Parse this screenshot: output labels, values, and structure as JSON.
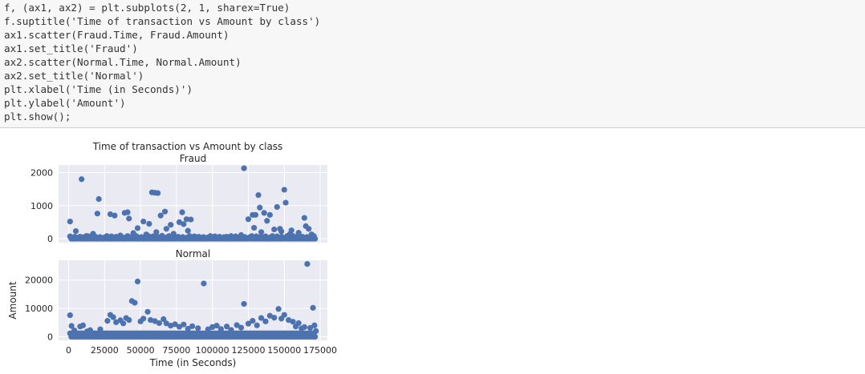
{
  "code_cell": {
    "lines": [
      "f, (ax1, ax2) = plt.subplots(2, 1, sharex=True)",
      "f.suptitle('Time of transaction vs Amount by class')",
      "ax1.scatter(Fraud.Time, Fraud.Amount)",
      "ax1.set_title('Fraud')",
      "ax2.scatter(Normal.Time, Normal.Amount)",
      "ax2.set_title('Normal')",
      "plt.xlabel('Time (in Seconds)')",
      "plt.ylabel('Amount')",
      "plt.show();"
    ]
  },
  "chart_data": {
    "type": "scatter",
    "title": "Time of transaction vs Amount by class",
    "colors": {
      "point": "#4c72b0",
      "axes_bg": "#eaeaf2",
      "grid": "#ffffff",
      "text": "#262626"
    },
    "xlabel": "Time (in Seconds)",
    "xlim": [
      -7000,
      180000
    ],
    "xticks": [
      0,
      25000,
      50000,
      75000,
      100000,
      125000,
      150000,
      175000
    ],
    "xtick_labels": [
      "0",
      "25000",
      "50000",
      "75000",
      "100000",
      "125000",
      "150000",
      "175000"
    ],
    "sharex": true,
    "subplots": [
      {
        "title": "Fraud",
        "ylabel": "",
        "ylim": [
          -120,
          2230
        ],
        "yticks": [
          0,
          1000,
          2000
        ],
        "ytick_labels": [
          "0",
          "1000",
          "2000"
        ],
        "points": [
          [
            1000,
            520
          ],
          [
            3000,
            5
          ],
          [
            5000,
            230
          ],
          [
            8000,
            60
          ],
          [
            9000,
            1800
          ],
          [
            10000,
            40
          ],
          [
            12000,
            10
          ],
          [
            13000,
            80
          ],
          [
            15000,
            30
          ],
          [
            17000,
            150
          ],
          [
            18000,
            5
          ],
          [
            20000,
            760
          ],
          [
            21000,
            1200
          ],
          [
            23000,
            20
          ],
          [
            25000,
            5
          ],
          [
            27000,
            60
          ],
          [
            29000,
            740
          ],
          [
            30000,
            10
          ],
          [
            32000,
            700
          ],
          [
            34000,
            40
          ],
          [
            36000,
            100
          ],
          [
            37000,
            5
          ],
          [
            39000,
            780
          ],
          [
            41000,
            800
          ],
          [
            42000,
            610
          ],
          [
            43000,
            30
          ],
          [
            45000,
            170
          ],
          [
            47000,
            80
          ],
          [
            48000,
            320
          ],
          [
            50000,
            5
          ],
          [
            52000,
            520
          ],
          [
            54000,
            130
          ],
          [
            56000,
            450
          ],
          [
            58000,
            1400
          ],
          [
            60000,
            1390
          ],
          [
            61000,
            200
          ],
          [
            62000,
            1380
          ],
          [
            63000,
            10
          ],
          [
            64000,
            700
          ],
          [
            65000,
            90
          ],
          [
            67000,
            820
          ],
          [
            68000,
            300
          ],
          [
            70000,
            20
          ],
          [
            71000,
            420
          ],
          [
            73000,
            150
          ],
          [
            75000,
            40
          ],
          [
            77000,
            500
          ],
          [
            79000,
            800
          ],
          [
            80000,
            440
          ],
          [
            82000,
            590
          ],
          [
            83000,
            240
          ],
          [
            85000,
            580
          ],
          [
            86000,
            20
          ],
          [
            88000,
            60
          ],
          [
            90000,
            5
          ],
          [
            93000,
            30
          ],
          [
            95000,
            20
          ],
          [
            98000,
            10
          ],
          [
            100000,
            5
          ],
          [
            103000,
            30
          ],
          [
            106000,
            5
          ],
          [
            108000,
            20
          ],
          [
            110000,
            60
          ],
          [
            112000,
            10
          ],
          [
            115000,
            30
          ],
          [
            118000,
            5
          ],
          [
            120000,
            110
          ],
          [
            122000,
            2130
          ],
          [
            125000,
            590
          ],
          [
            126000,
            40
          ],
          [
            128000,
            720
          ],
          [
            129000,
            330
          ],
          [
            130000,
            720
          ],
          [
            132000,
            1320
          ],
          [
            133000,
            940
          ],
          [
            134000,
            200
          ],
          [
            136000,
            780
          ],
          [
            137000,
            70
          ],
          [
            138000,
            540
          ],
          [
            140000,
            720
          ],
          [
            141000,
            30
          ],
          [
            143000,
            280
          ],
          [
            145000,
            960
          ],
          [
            147000,
            300
          ],
          [
            148000,
            220
          ],
          [
            150000,
            1480
          ],
          [
            151000,
            1090
          ],
          [
            152000,
            80
          ],
          [
            154000,
            140
          ],
          [
            155000,
            250
          ],
          [
            157000,
            60
          ],
          [
            159000,
            30
          ],
          [
            160000,
            180
          ],
          [
            162000,
            10
          ],
          [
            164000,
            630
          ],
          [
            165000,
            380
          ],
          [
            166000,
            20
          ],
          [
            167000,
            300
          ],
          [
            168000,
            5
          ],
          [
            169000,
            130
          ],
          [
            170000,
            10
          ]
        ]
      },
      {
        "title": "Normal",
        "ylabel": "Amount",
        "ylim": [
          -1300,
          27000
        ],
        "yticks": [
          0,
          10000,
          20000
        ],
        "ytick_labels": [
          "0",
          "10000",
          "20000"
        ],
        "points": [
          [
            1000,
            7600
          ],
          [
            2000,
            3800
          ],
          [
            4000,
            2200
          ],
          [
            8000,
            3600
          ],
          [
            10000,
            4000
          ],
          [
            13000,
            1900
          ],
          [
            15000,
            2300
          ],
          [
            18000,
            1200
          ],
          [
            22000,
            2600
          ],
          [
            27000,
            5600
          ],
          [
            29000,
            7700
          ],
          [
            31000,
            6900
          ],
          [
            33000,
            5100
          ],
          [
            36000,
            5800
          ],
          [
            38000,
            4700
          ],
          [
            40000,
            6600
          ],
          [
            42000,
            5900
          ],
          [
            44000,
            12600
          ],
          [
            46000,
            12000
          ],
          [
            48000,
            19500
          ],
          [
            50000,
            5400
          ],
          [
            52000,
            6400
          ],
          [
            55000,
            8800
          ],
          [
            57000,
            5900
          ],
          [
            60000,
            5500
          ],
          [
            63000,
            4800
          ],
          [
            66000,
            6200
          ],
          [
            68000,
            4700
          ],
          [
            71000,
            3900
          ],
          [
            74000,
            4400
          ],
          [
            77000,
            3500
          ],
          [
            80000,
            4300
          ],
          [
            83000,
            2800
          ],
          [
            86000,
            3700
          ],
          [
            90000,
            3000
          ],
          [
            94000,
            18800
          ],
          [
            97000,
            2600
          ],
          [
            100000,
            3400
          ],
          [
            103000,
            3900
          ],
          [
            106000,
            2700
          ],
          [
            110000,
            3600
          ],
          [
            113000,
            2400
          ],
          [
            117000,
            4100
          ],
          [
            120000,
            3200
          ],
          [
            122000,
            11600
          ],
          [
            125000,
            4600
          ],
          [
            128000,
            5600
          ],
          [
            131000,
            4000
          ],
          [
            134000,
            6600
          ],
          [
            137000,
            5400
          ],
          [
            140000,
            7400
          ],
          [
            143000,
            6700
          ],
          [
            146000,
            9800
          ],
          [
            148000,
            6400
          ],
          [
            150000,
            7700
          ],
          [
            153000,
            5900
          ],
          [
            156000,
            5300
          ],
          [
            158000,
            3600
          ],
          [
            160000,
            4800
          ],
          [
            162000,
            2900
          ],
          [
            164000,
            3400
          ],
          [
            166000,
            25700
          ],
          [
            168000,
            3100
          ],
          [
            170000,
            10200
          ],
          [
            171000,
            4000
          ],
          [
            172000,
            2000
          ]
        ]
      }
    ]
  }
}
